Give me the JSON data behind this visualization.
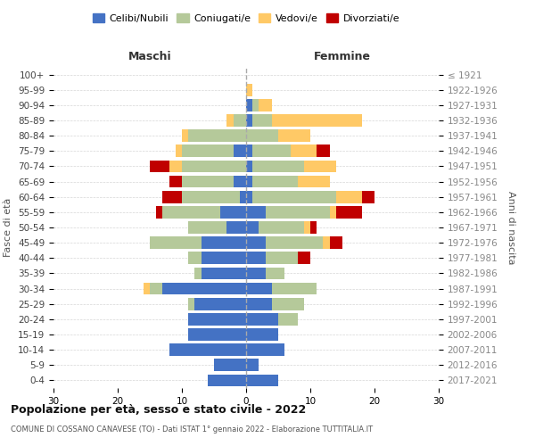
{
  "age_groups": [
    "0-4",
    "5-9",
    "10-14",
    "15-19",
    "20-24",
    "25-29",
    "30-34",
    "35-39",
    "40-44",
    "45-49",
    "50-54",
    "55-59",
    "60-64",
    "65-69",
    "70-74",
    "75-79",
    "80-84",
    "85-89",
    "90-94",
    "95-99",
    "100+"
  ],
  "birth_years": [
    "2017-2021",
    "2012-2016",
    "2007-2011",
    "2002-2006",
    "1997-2001",
    "1992-1996",
    "1987-1991",
    "1982-1986",
    "1977-1981",
    "1972-1976",
    "1967-1971",
    "1962-1966",
    "1957-1961",
    "1952-1956",
    "1947-1951",
    "1942-1946",
    "1937-1941",
    "1932-1936",
    "1927-1931",
    "1922-1926",
    "≤ 1921"
  ],
  "maschi": {
    "celibi": [
      6,
      5,
      12,
      9,
      9,
      8,
      13,
      7,
      7,
      7,
      3,
      4,
      1,
      2,
      0,
      2,
      0,
      0,
      0,
      0,
      0
    ],
    "coniugati": [
      0,
      0,
      0,
      0,
      0,
      1,
      2,
      1,
      2,
      8,
      6,
      9,
      9,
      8,
      10,
      8,
      9,
      2,
      0,
      0,
      0
    ],
    "vedovi": [
      0,
      0,
      0,
      0,
      0,
      0,
      1,
      0,
      0,
      0,
      0,
      0,
      0,
      0,
      2,
      1,
      1,
      1,
      0,
      0,
      0
    ],
    "divorziati": [
      0,
      0,
      0,
      0,
      0,
      0,
      0,
      0,
      0,
      0,
      0,
      1,
      3,
      2,
      3,
      0,
      0,
      0,
      0,
      0,
      0
    ]
  },
  "femmine": {
    "nubili": [
      5,
      2,
      6,
      5,
      5,
      4,
      4,
      3,
      3,
      3,
      2,
      3,
      1,
      1,
      1,
      1,
      0,
      1,
      1,
      0,
      0
    ],
    "coniugate": [
      0,
      0,
      0,
      0,
      3,
      5,
      7,
      3,
      5,
      9,
      7,
      10,
      13,
      7,
      8,
      6,
      5,
      3,
      1,
      0,
      0
    ],
    "vedove": [
      0,
      0,
      0,
      0,
      0,
      0,
      0,
      0,
      0,
      1,
      1,
      1,
      4,
      5,
      5,
      4,
      5,
      14,
      2,
      1,
      0
    ],
    "divorziate": [
      0,
      0,
      0,
      0,
      0,
      0,
      0,
      0,
      2,
      2,
      1,
      4,
      2,
      0,
      0,
      2,
      0,
      0,
      0,
      0,
      0
    ]
  },
  "colors": {
    "celibi_nubili": "#4472c4",
    "coniugati": "#b5c99a",
    "vedovi": "#ffc966",
    "divorziati": "#c00000"
  },
  "title": "Popolazione per età, sesso e stato civile - 2022",
  "subtitle": "COMUNE DI COSSANO CANAVESE (TO) - Dati ISTAT 1° gennaio 2022 - Elaborazione TUTTITALIA.IT",
  "xlabel_left": "Maschi",
  "xlabel_right": "Femmine",
  "ylabel_left": "Fasce di età",
  "ylabel_right": "Anni di nascita",
  "xlim": 30,
  "legend_labels": [
    "Celibi/Nubili",
    "Coniugati/e",
    "Vedovi/e",
    "Divorziati/e"
  ],
  "bg_color": "#ffffff",
  "grid_color": "#cccccc"
}
